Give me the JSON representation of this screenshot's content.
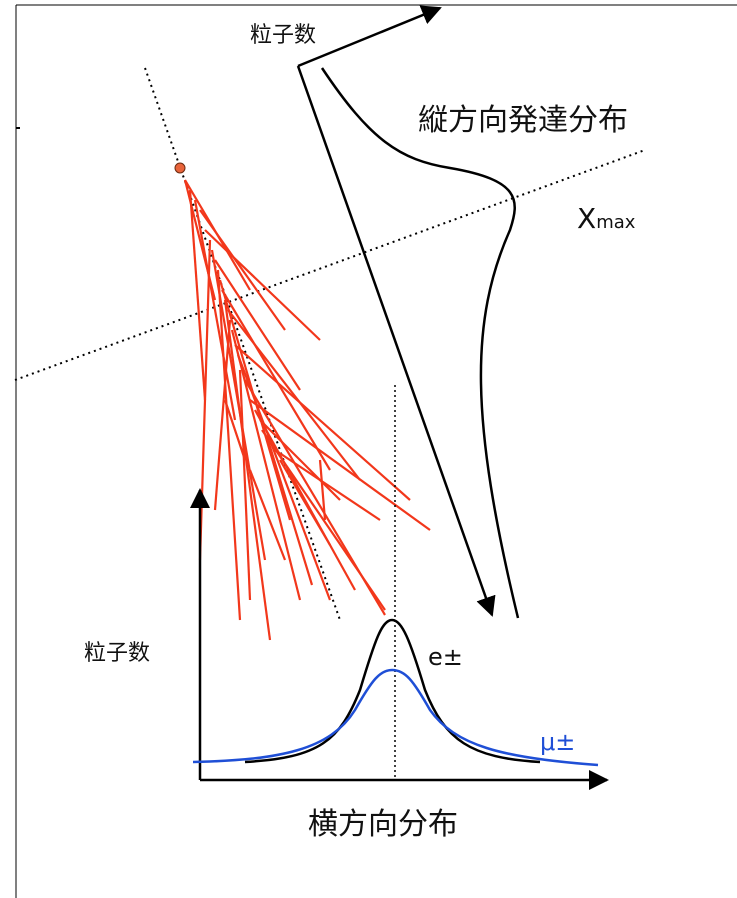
{
  "labels": {
    "top_axis": "粒子数",
    "longitudinal": "縦方向発達分布",
    "xmax": {
      "base": "X",
      "sub": "max"
    },
    "left_axis": "粒子数",
    "electron": "e±",
    "muon": "μ±",
    "lateral": "横方向分布"
  }
}
